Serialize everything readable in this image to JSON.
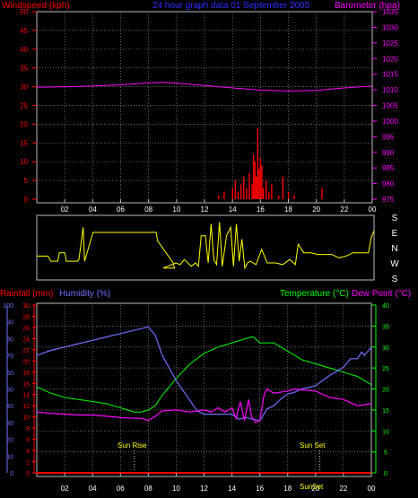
{
  "header": {
    "wind_label": "Windspeed (kph)",
    "title": "24 hour graph data  01 September 2005",
    "baro_label": "Barometer (hpa)"
  },
  "colors": {
    "wind": "#ff0000",
    "title": "#3030ff",
    "baro": "#ff00ff",
    "direction": "#ffff00",
    "rain": "#ff0000",
    "humidity": "#7070ff",
    "temperature": "#00ff00",
    "dewpoint": "#ff00ff",
    "tick": "#ffffff",
    "grid": "#888888"
  },
  "hour_ticks": [
    "02",
    "04",
    "06",
    "08",
    "10",
    "12",
    "14",
    "16",
    "18",
    "20",
    "22",
    "00"
  ],
  "panel_wind": {
    "wind_ticks": [
      "0",
      "5",
      "10",
      "15",
      "20",
      "25",
      "30",
      "35",
      "40",
      "45",
      "50"
    ],
    "baro_ticks": [
      "975",
      "980",
      "985",
      "990",
      "995",
      "1000",
      "1005",
      "1010",
      "1015",
      "1020",
      "1025",
      "1030",
      "1035"
    ]
  },
  "panel_direction": {
    "dir_ticks": [
      "S",
      "E",
      "N",
      "W",
      "S"
    ]
  },
  "panel_weather": {
    "rain_label": "Rainfall (mm)",
    "humidity_label": "Humidity (%)",
    "temp_label": "Temperature (°C)",
    "dew_label": "Dew Point (°C)",
    "humidity_ticks": [
      "0",
      "10",
      "20",
      "30",
      "40",
      "50",
      "60",
      "70",
      "80",
      "90",
      "100"
    ],
    "rain_ticks": [
      "0",
      "2",
      "4",
      "6",
      "8",
      "10",
      "12",
      "14",
      "16",
      "18",
      "20",
      "22",
      "24",
      "26",
      "28",
      "30"
    ],
    "temp_ticks": [
      "0",
      "5",
      "10",
      "15",
      "20",
      "25",
      "30",
      "35",
      "40"
    ],
    "sunrise_label": "Sun Rise",
    "sunset_label": "Sun Set",
    "sunset_bottom_label": "SunSet"
  },
  "chart_data": [
    {
      "type": "area",
      "title": "24 hour graph data  01 September 2005",
      "x_unit": "hour",
      "xlim": [
        0,
        24
      ],
      "series": [
        {
          "name": "Windspeed (kph)",
          "axis": "left",
          "ylim": [
            0,
            50
          ],
          "x": [
            12.6,
            13.0,
            13.4,
            13.8,
            14.0,
            14.2,
            14.4,
            14.6,
            14.8,
            15.0,
            15.2,
            15.4,
            15.5,
            15.6,
            15.7,
            15.8,
            15.9,
            16.0,
            16.1,
            16.2,
            16.4,
            16.6,
            16.8,
            17.0,
            17.3,
            17.6,
            18.0,
            18.4,
            20.4,
            22.0
          ],
          "values": [
            0,
            1,
            2,
            0,
            3,
            5,
            2,
            4,
            6,
            3,
            7,
            4,
            12,
            10,
            6,
            19,
            8,
            11,
            9,
            3,
            5,
            2,
            4,
            0,
            1,
            6,
            2,
            1,
            3,
            0
          ]
        },
        {
          "name": "Barometer (hpa)",
          "axis": "right",
          "ylim": [
            975,
            1035
          ],
          "x": [
            0,
            2,
            4,
            6,
            8,
            9,
            10,
            12,
            14,
            16,
            18,
            20,
            22,
            24
          ],
          "values": [
            1010.8,
            1011.0,
            1011.2,
            1011.6,
            1012.2,
            1012.4,
            1012.1,
            1011.4,
            1010.6,
            1009.9,
            1009.6,
            1009.8,
            1010.6,
            1011.2
          ]
        }
      ]
    },
    {
      "type": "line",
      "xlim": [
        0,
        24
      ],
      "y_categories": [
        "S",
        "E",
        "N",
        "W",
        "S"
      ],
      "series": [
        {
          "name": "direction_deg",
          "x": [
            0,
            0.8,
            1.0,
            1.5,
            1.6,
            2.0,
            2.1,
            2.9,
            3.0,
            3.3,
            3.4,
            4.0,
            7.0,
            8.5,
            8.6,
            9.7,
            9.8,
            9.0,
            9.9,
            10.2,
            10.5,
            11.0,
            11.3,
            11.5,
            11.7,
            12.0,
            12.2,
            12.4,
            12.6,
            12.8,
            13.0,
            13.2,
            13.5,
            13.8,
            14.0,
            14.2,
            14.4,
            14.6,
            14.8,
            15.0,
            15.2,
            15.6,
            16.0,
            16.4,
            16.6,
            17.0,
            17.5,
            18.0,
            18.4,
            18.6,
            19.0,
            19.5,
            20.0,
            20.5,
            21.0,
            21.5,
            22.0,
            22.5,
            23.0,
            23.6,
            23.8,
            24.0
          ],
          "values": [
            130,
            130,
            100,
            100,
            150,
            150,
            100,
            100,
            110,
            300,
            100,
            270,
            270,
            270,
            220,
            90,
            60,
            60,
            90,
            80,
            110,
            70,
            90,
            70,
            250,
            250,
            90,
            320,
            110,
            80,
            330,
            70,
            250,
            300,
            70,
            320,
            100,
            230,
            60,
            90,
            100,
            80,
            170,
            90,
            90,
            90,
            80,
            110,
            80,
            200,
            150,
            150,
            140,
            140,
            140,
            120,
            130,
            150,
            150,
            150,
            240,
            280
          ]
        }
      ]
    },
    {
      "type": "line",
      "xlim": [
        0,
        24
      ],
      "series": [
        {
          "name": "Humidity (%)",
          "axis": "humidity",
          "ylim": [
            0,
            100
          ],
          "x": [
            0,
            1,
            2,
            3,
            4,
            5,
            6,
            7,
            7.5,
            8,
            8.5,
            9,
            10,
            11,
            11.5,
            12,
            13,
            14,
            14.5,
            15,
            15.5,
            16,
            16.5,
            17,
            17.5,
            18,
            18.5,
            19,
            20,
            21,
            22,
            22.5,
            23,
            23.3,
            23.5,
            24
          ],
          "values": [
            70,
            73,
            75,
            77,
            79,
            81,
            83,
            85,
            86,
            87,
            82,
            70,
            55,
            43,
            37,
            35,
            35,
            35,
            32,
            33,
            32,
            31,
            38,
            40,
            44,
            47,
            48,
            50,
            52,
            58,
            63,
            68,
            68,
            72,
            70,
            75
          ]
        },
        {
          "name": "Rainfall (mm)",
          "axis": "rain",
          "ylim": [
            0,
            30
          ],
          "x": [
            0,
            24
          ],
          "values": [
            0,
            0
          ]
        },
        {
          "name": "Temperature (°C)",
          "axis": "temp",
          "ylim": [
            0,
            40
          ],
          "x": [
            0,
            1,
            2,
            3,
            4,
            5,
            6,
            7,
            7.5,
            8,
            8.5,
            9,
            10,
            11,
            12,
            13,
            14,
            15,
            15.5,
            16,
            17,
            18,
            18.5,
            19,
            20,
            21,
            22,
            23,
            24
          ],
          "values": [
            20.5,
            19,
            18,
            17.5,
            17,
            16.5,
            15.5,
            14.5,
            14.5,
            15,
            16,
            18.5,
            22.5,
            26,
            28.5,
            30,
            31,
            32,
            32.5,
            31,
            31,
            29,
            28,
            27,
            26,
            25,
            24,
            23,
            21
          ]
        },
        {
          "name": "Dew Point (°C)",
          "axis": "temp",
          "ylim": [
            0,
            40
          ],
          "x": [
            0,
            1,
            2,
            3,
            4,
            5,
            6,
            7,
            7.5,
            8,
            8.5,
            9,
            10,
            11,
            12,
            12.5,
            13,
            13.5,
            14,
            14.3,
            14.6,
            14.9,
            15.2,
            15.4,
            15.7,
            16.0,
            16.3,
            16.5,
            17,
            18,
            18.5,
            19,
            20,
            21,
            22,
            23,
            24
          ],
          "values": [
            14.5,
            14.2,
            14.0,
            13.8,
            13.8,
            13.5,
            13.2,
            13.0,
            13.0,
            12.5,
            13.5,
            14.8,
            15.0,
            14.5,
            15.0,
            14.5,
            15.5,
            14.5,
            15.5,
            13.0,
            17.0,
            12.5,
            17.5,
            13.5,
            12.0,
            12.5,
            18.5,
            20.0,
            19.0,
            19.5,
            20.0,
            19.8,
            19.5,
            18.0,
            17.5,
            16.0,
            16.5
          ]
        }
      ],
      "events": [
        {
          "label": "Sun Rise",
          "x": 7.0
        },
        {
          "label": "Sun Set",
          "x": 20.3
        }
      ]
    }
  ]
}
